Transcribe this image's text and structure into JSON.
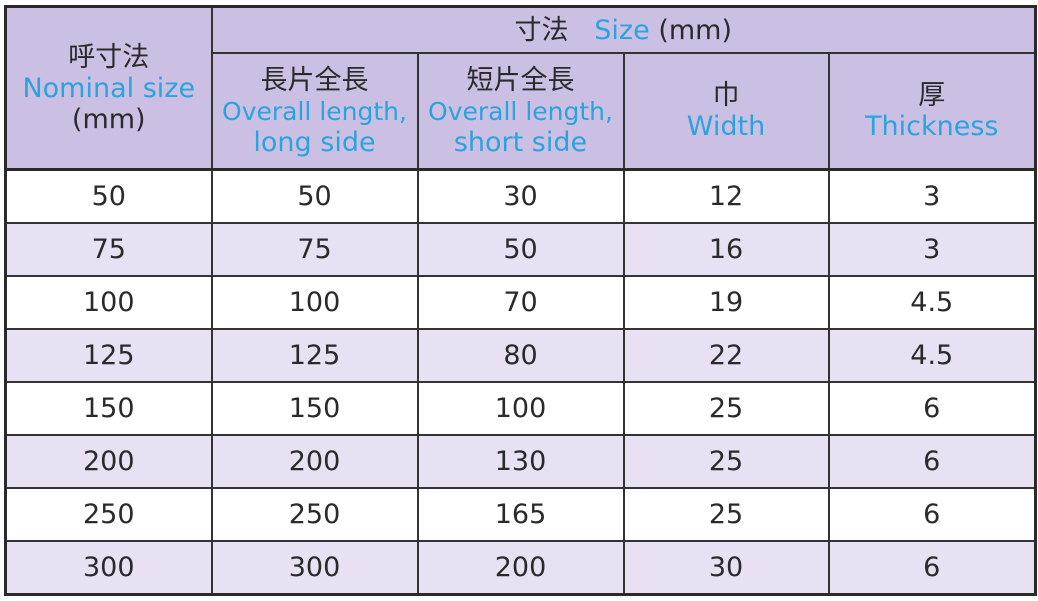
{
  "header": {
    "nominal": {
      "jp": "呼寸法",
      "en": "Nominal size",
      "unit": "(mm)"
    },
    "size_group": {
      "jp": "寸法",
      "en": "Size",
      "unit": "(mm)"
    },
    "columns": [
      {
        "jp": "長片全長",
        "en1": "Overall length,",
        "en2": "long side"
      },
      {
        "jp": "短片全長",
        "en1": "Overall length,",
        "en2": "short side"
      },
      {
        "jp": "巾",
        "en1": "Width",
        "en2": ""
      },
      {
        "jp": "厚",
        "en1": "Thickness",
        "en2": ""
      }
    ]
  },
  "rows": [
    [
      "50",
      "50",
      "30",
      "12",
      "3"
    ],
    [
      "75",
      "75",
      "50",
      "16",
      "3"
    ],
    [
      "100",
      "100",
      "70",
      "19",
      "4.5"
    ],
    [
      "125",
      "125",
      "80",
      "22",
      "4.5"
    ],
    [
      "150",
      "150",
      "100",
      "25",
      "6"
    ],
    [
      "200",
      "200",
      "130",
      "25",
      "6"
    ],
    [
      "250",
      "250",
      "165",
      "25",
      "6"
    ],
    [
      "300",
      "300",
      "200",
      "30",
      "6"
    ]
  ],
  "colors": {
    "header_bg": "#cbc0e4",
    "alt_row_bg": "#e7e1f3",
    "english_text": "#2ba3dc"
  }
}
